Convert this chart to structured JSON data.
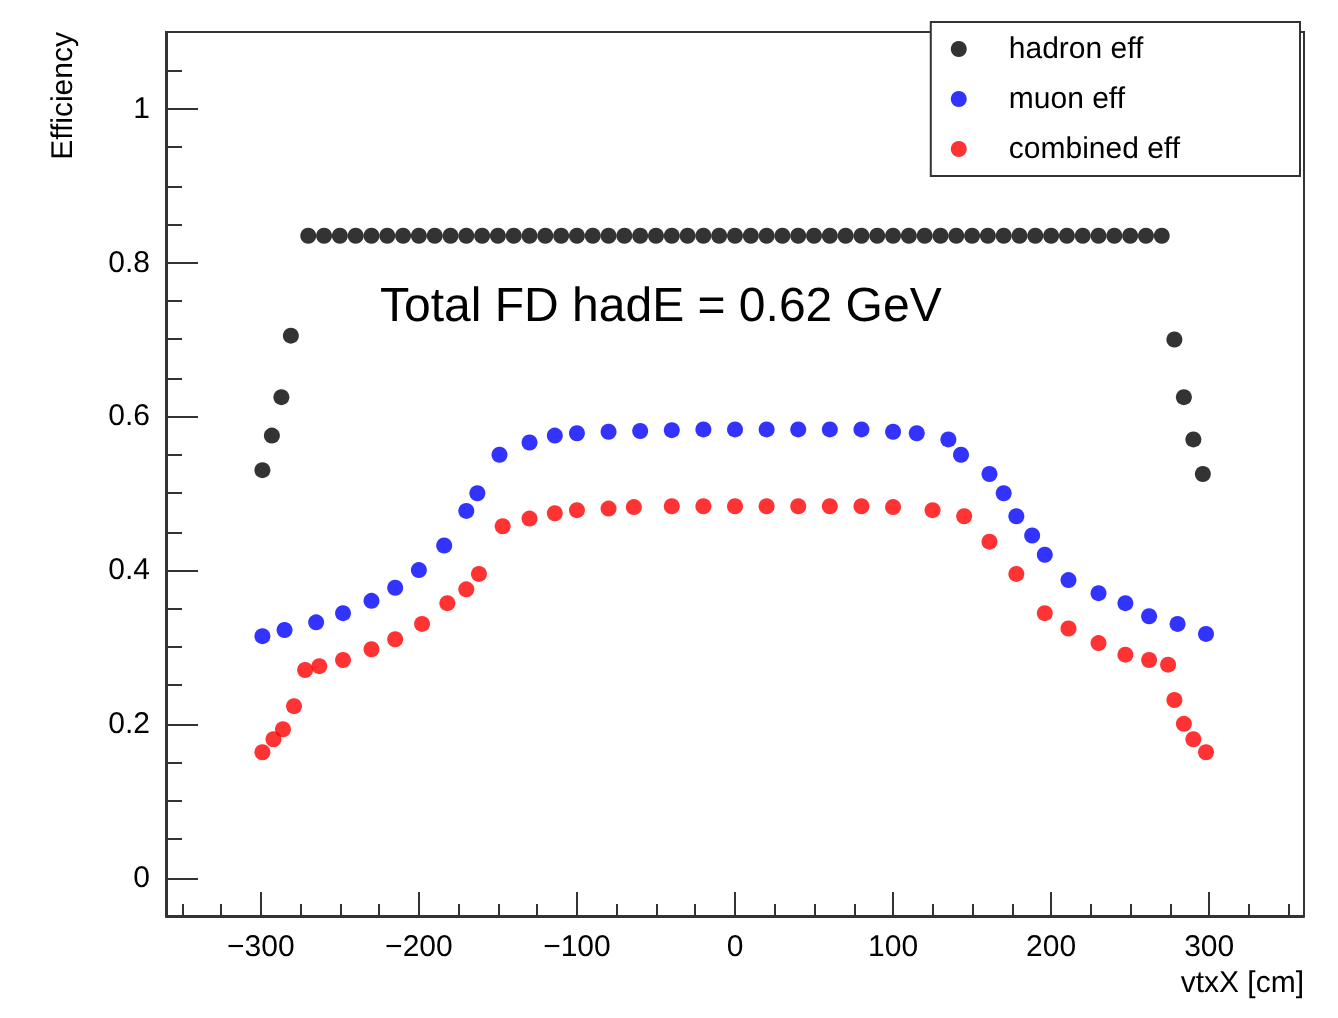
{
  "chart_data": {
    "type": "scatter",
    "xlabel": "vtxX [cm]",
    "ylabel": "Efficiency",
    "annotations": [
      "Total FD hadE = 0.62 GeV"
    ],
    "xlim": [
      -360,
      360
    ],
    "xticks": [
      -300,
      -200,
      -100,
      0,
      100,
      200,
      300
    ],
    "ylim": [
      -0.05,
      1.1
    ],
    "yticks": [
      0,
      0.2,
      0.4,
      0.6,
      0.8,
      1
    ],
    "grid": false,
    "legend": "top right",
    "marker": "circle",
    "series": [
      {
        "name": "hadron eff",
        "color": "#000000",
        "x": [
          -299,
          -293,
          -287,
          -281,
          -270,
          -260,
          -250,
          -240,
          -230,
          -220,
          -210,
          -200,
          -190,
          -180,
          -170,
          -160,
          -150,
          -140,
          -130,
          -120,
          -110,
          -100,
          -90,
          -80,
          -70,
          -60,
          -50,
          -40,
          -30,
          -20,
          -10,
          0,
          10,
          20,
          30,
          40,
          50,
          60,
          70,
          80,
          90,
          100,
          110,
          120,
          130,
          140,
          150,
          160,
          170,
          180,
          190,
          200,
          210,
          220,
          230,
          240,
          250,
          260,
          270,
          278,
          284,
          290,
          296
        ],
        "values": [
          0.53,
          0.575,
          0.625,
          0.705,
          0.835,
          0.835,
          0.835,
          0.835,
          0.835,
          0.835,
          0.835,
          0.835,
          0.835,
          0.835,
          0.835,
          0.835,
          0.835,
          0.835,
          0.835,
          0.835,
          0.835,
          0.835,
          0.835,
          0.835,
          0.835,
          0.835,
          0.835,
          0.835,
          0.835,
          0.835,
          0.835,
          0.835,
          0.835,
          0.835,
          0.835,
          0.835,
          0.835,
          0.835,
          0.835,
          0.835,
          0.835,
          0.835,
          0.835,
          0.835,
          0.835,
          0.835,
          0.835,
          0.835,
          0.835,
          0.835,
          0.835,
          0.835,
          0.835,
          0.835,
          0.835,
          0.835,
          0.835,
          0.835,
          0.835,
          0.7,
          0.625,
          0.57,
          0.525
        ]
      },
      {
        "name": "muon eff",
        "color": "#0000ff",
        "x": [
          -299,
          -285,
          -265,
          -248,
          -230,
          -215,
          -200,
          -184,
          -170,
          -163,
          -149,
          -130,
          -114,
          -100,
          -80,
          -60,
          -40,
          -20,
          0,
          20,
          40,
          60,
          80,
          100,
          115,
          135,
          143,
          161,
          170,
          178,
          188,
          196,
          211,
          230,
          247,
          262,
          280,
          298
        ],
        "values": [
          0.314,
          0.322,
          0.332,
          0.344,
          0.36,
          0.377,
          0.4,
          0.432,
          0.477,
          0.5,
          0.55,
          0.566,
          0.575,
          0.578,
          0.58,
          0.581,
          0.582,
          0.583,
          0.583,
          0.583,
          0.583,
          0.583,
          0.583,
          0.58,
          0.578,
          0.57,
          0.55,
          0.525,
          0.5,
          0.47,
          0.445,
          0.42,
          0.387,
          0.37,
          0.357,
          0.34,
          0.33,
          0.317
        ]
      },
      {
        "name": "combined eff",
        "color": "#ff0000",
        "x": [
          -299,
          -292,
          -286,
          -279,
          -272,
          -263,
          -248,
          -230,
          -215,
          -198,
          -182,
          -170,
          -162,
          -147,
          -130,
          -114,
          -100,
          -80,
          -64,
          -40,
          -20,
          0,
          20,
          40,
          60,
          80,
          100,
          125,
          145,
          161,
          178,
          196,
          211,
          230,
          247,
          262,
          274,
          278,
          284,
          290,
          298
        ],
        "values": [
          0.163,
          0.18,
          0.193,
          0.223,
          0.27,
          0.275,
          0.283,
          0.297,
          0.31,
          0.33,
          0.357,
          0.375,
          0.395,
          0.457,
          0.467,
          0.474,
          0.478,
          0.48,
          0.482,
          0.483,
          0.483,
          0.483,
          0.483,
          0.483,
          0.483,
          0.483,
          0.482,
          0.478,
          0.47,
          0.437,
          0.395,
          0.344,
          0.324,
          0.305,
          0.29,
          0.283,
          0.277,
          0.231,
          0.2,
          0.18,
          0.163
        ]
      }
    ]
  }
}
